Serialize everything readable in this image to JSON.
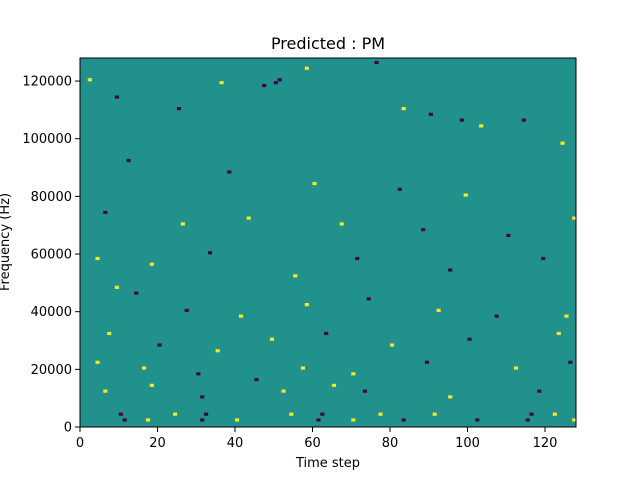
{
  "chart_data": {
    "type": "heatmap",
    "title": "Predicted : PM",
    "xlabel": "Time step",
    "ylabel": "Frequency (Hz)",
    "xlim": [
      0,
      128
    ],
    "ylim": [
      0,
      128000
    ],
    "x_ticks": [
      0,
      20,
      40,
      60,
      80,
      100,
      120
    ],
    "y_ticks": [
      0,
      20000,
      40000,
      60000,
      80000,
      100000,
      120000
    ],
    "colormap": {
      "low": "#440154",
      "mid": "#21918c",
      "high": "#fde725"
    },
    "background_value": 0,
    "grid_shape": {
      "time_steps": 128,
      "frequency_bins": 128
    },
    "nonzero_cells": [
      {
        "t": 2,
        "f": 120000,
        "v": 1
      },
      {
        "t": 9,
        "f": 114000,
        "v": -1
      },
      {
        "t": 25,
        "f": 110000,
        "v": -1
      },
      {
        "t": 36,
        "f": 119000,
        "v": 1
      },
      {
        "t": 47,
        "f": 118000,
        "v": -1
      },
      {
        "t": 50,
        "f": 119000,
        "v": -1
      },
      {
        "t": 51,
        "f": 120000,
        "v": -1
      },
      {
        "t": 58,
        "f": 124000,
        "v": 1
      },
      {
        "t": 76,
        "f": 126000,
        "v": -1
      },
      {
        "t": 83,
        "f": 110000,
        "v": 1
      },
      {
        "t": 90,
        "f": 108000,
        "v": -1
      },
      {
        "t": 98,
        "f": 106000,
        "v": -1
      },
      {
        "t": 103,
        "f": 104000,
        "v": 1
      },
      {
        "t": 114,
        "f": 106000,
        "v": -1
      },
      {
        "t": 124,
        "f": 98000,
        "v": 1
      },
      {
        "t": 12,
        "f": 92000,
        "v": -1
      },
      {
        "t": 38,
        "f": 88000,
        "v": -1
      },
      {
        "t": 60,
        "f": 84000,
        "v": 1
      },
      {
        "t": 82,
        "f": 82000,
        "v": -1
      },
      {
        "t": 99,
        "f": 80000,
        "v": 1
      },
      {
        "t": 6,
        "f": 74000,
        "v": -1
      },
      {
        "t": 26,
        "f": 70000,
        "v": 1
      },
      {
        "t": 43,
        "f": 72000,
        "v": 1
      },
      {
        "t": 67,
        "f": 70000,
        "v": 1
      },
      {
        "t": 88,
        "f": 68000,
        "v": -1
      },
      {
        "t": 110,
        "f": 66000,
        "v": -1
      },
      {
        "t": 127,
        "f": 72000,
        "v": 1
      },
      {
        "t": 4,
        "f": 58000,
        "v": 1
      },
      {
        "t": 18,
        "f": 56000,
        "v": 1
      },
      {
        "t": 33,
        "f": 60000,
        "v": -1
      },
      {
        "t": 55,
        "f": 52000,
        "v": 1
      },
      {
        "t": 71,
        "f": 58000,
        "v": -1
      },
      {
        "t": 95,
        "f": 54000,
        "v": -1
      },
      {
        "t": 119,
        "f": 58000,
        "v": -1
      },
      {
        "t": 9,
        "f": 48000,
        "v": 1
      },
      {
        "t": 14,
        "f": 46000,
        "v": -1
      },
      {
        "t": 27,
        "f": 40000,
        "v": -1
      },
      {
        "t": 41,
        "f": 38000,
        "v": 1
      },
      {
        "t": 58,
        "f": 42000,
        "v": 1
      },
      {
        "t": 74,
        "f": 44000,
        "v": -1
      },
      {
        "t": 92,
        "f": 40000,
        "v": 1
      },
      {
        "t": 107,
        "f": 38000,
        "v": -1
      },
      {
        "t": 125,
        "f": 38000,
        "v": 1
      },
      {
        "t": 7,
        "f": 32000,
        "v": 1
      },
      {
        "t": 20,
        "f": 28000,
        "v": -1
      },
      {
        "t": 35,
        "f": 26000,
        "v": 1
      },
      {
        "t": 49,
        "f": 30000,
        "v": 1
      },
      {
        "t": 63,
        "f": 32000,
        "v": -1
      },
      {
        "t": 80,
        "f": 28000,
        "v": 1
      },
      {
        "t": 100,
        "f": 30000,
        "v": -1
      },
      {
        "t": 123,
        "f": 32000,
        "v": 1
      },
      {
        "t": 4,
        "f": 22000,
        "v": 1
      },
      {
        "t": 16,
        "f": 20000,
        "v": 1
      },
      {
        "t": 30,
        "f": 18000,
        "v": -1
      },
      {
        "t": 45,
        "f": 16000,
        "v": -1
      },
      {
        "t": 57,
        "f": 20000,
        "v": 1
      },
      {
        "t": 70,
        "f": 18000,
        "v": 1
      },
      {
        "t": 89,
        "f": 22000,
        "v": -1
      },
      {
        "t": 112,
        "f": 20000,
        "v": 1
      },
      {
        "t": 126,
        "f": 22000,
        "v": -1
      },
      {
        "t": 6,
        "f": 12000,
        "v": 1
      },
      {
        "t": 18,
        "f": 14000,
        "v": 1
      },
      {
        "t": 31,
        "f": 10000,
        "v": -1
      },
      {
        "t": 52,
        "f": 12000,
        "v": 1
      },
      {
        "t": 65,
        "f": 14000,
        "v": 1
      },
      {
        "t": 73,
        "f": 12000,
        "v": -1
      },
      {
        "t": 95,
        "f": 10000,
        "v": 1
      },
      {
        "t": 118,
        "f": 12000,
        "v": -1
      },
      {
        "t": 10,
        "f": 4000,
        "v": -1
      },
      {
        "t": 11,
        "f": 2000,
        "v": -1
      },
      {
        "t": 17,
        "f": 2000,
        "v": 1
      },
      {
        "t": 24,
        "f": 4000,
        "v": 1
      },
      {
        "t": 31,
        "f": 2000,
        "v": -1
      },
      {
        "t": 32,
        "f": 4000,
        "v": -1
      },
      {
        "t": 40,
        "f": 2000,
        "v": 1
      },
      {
        "t": 54,
        "f": 4000,
        "v": 1
      },
      {
        "t": 61,
        "f": 2000,
        "v": -1
      },
      {
        "t": 62,
        "f": 4000,
        "v": -1
      },
      {
        "t": 70,
        "f": 2000,
        "v": 1
      },
      {
        "t": 77,
        "f": 4000,
        "v": 1
      },
      {
        "t": 83,
        "f": 2000,
        "v": -1
      },
      {
        "t": 91,
        "f": 4000,
        "v": 1
      },
      {
        "t": 102,
        "f": 2000,
        "v": -1
      },
      {
        "t": 115,
        "f": 2000,
        "v": -1
      },
      {
        "t": 116,
        "f": 4000,
        "v": -1
      },
      {
        "t": 122,
        "f": 4000,
        "v": 1
      },
      {
        "t": 127,
        "f": 2000,
        "v": 1
      }
    ]
  }
}
